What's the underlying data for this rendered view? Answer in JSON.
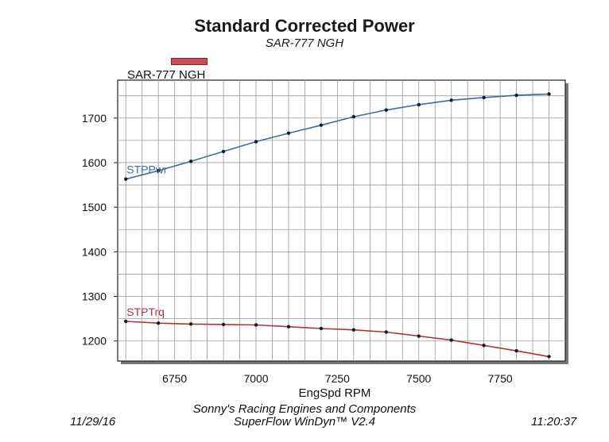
{
  "chart_data": {
    "type": "line",
    "title": "Standard Corrected Power",
    "subtitle": "SAR-777 NGH",
    "legend": {
      "label": "SAR-777 NGH",
      "color": "#cc4d55",
      "placement": "top-left"
    },
    "xlabel": "EngSpd  RPM",
    "ylabel": "",
    "xlim": [
      6575,
      7950
    ],
    "ylim": [
      1155,
      1785
    ],
    "x_ticks": [
      "6750",
      "7000",
      "7250",
      "7500",
      "7750"
    ],
    "y_ticks": [
      "1200",
      "1300",
      "1400",
      "1500",
      "1600",
      "1700"
    ],
    "grid": true,
    "x": [
      6600,
      6700,
      6800,
      6900,
      7000,
      7100,
      7200,
      7300,
      7400,
      7500,
      7600,
      7700,
      7800,
      7900
    ],
    "series": [
      {
        "name": "STPPwr",
        "color": "#3a6e9c",
        "values": [
          1563,
          1582,
          1603,
          1625,
          1647,
          1666,
          1684,
          1703,
          1718,
          1730,
          1740,
          1746,
          1751,
          1754
        ]
      },
      {
        "name": "STPTrq",
        "color": "#b0323c",
        "values": [
          1244,
          1240,
          1238,
          1237,
          1236,
          1232,
          1228,
          1225,
          1220,
          1211,
          1202,
          1190,
          1178,
          1165
        ]
      }
    ]
  },
  "footer": {
    "company": "Sonny's Racing Engines and Components",
    "software": "SuperFlow WinDyn™ V2.4",
    "date": "11/29/16",
    "time": "11:20:37"
  }
}
